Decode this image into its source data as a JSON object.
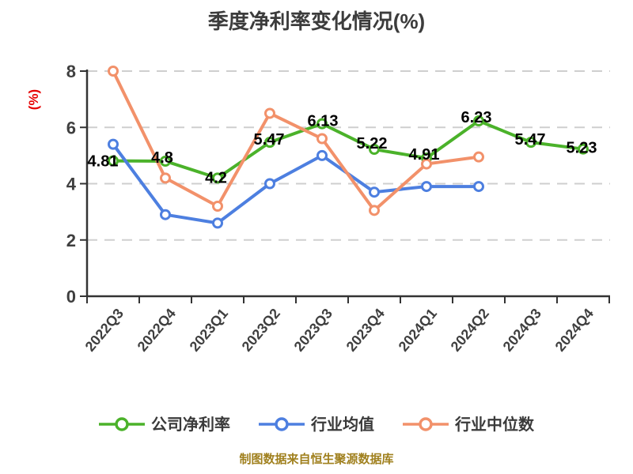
{
  "title": "季度净利率变化情况(%)",
  "footer": "制图数据来自恒生聚源数据库",
  "y_axis": {
    "unit_label": "(%)",
    "min": 0,
    "max": 8,
    "ticks": [
      0,
      2,
      4,
      6,
      8
    ]
  },
  "colors": {
    "company": "#4bb22a",
    "industry_avg": "#4d7fe0",
    "industry_median": "#f2916a",
    "grid": "#cfcfcf",
    "axis": "#333333",
    "data_label": "#000000",
    "footer_text": "#a0801e",
    "unit_label": "#e60000"
  },
  "chart_data": {
    "type": "line",
    "title": "季度净利率变化情况(%)",
    "ylabel": "(%)",
    "ylim": [
      0,
      8
    ],
    "yticks": [
      0,
      2,
      4,
      6,
      8
    ],
    "grid": true,
    "legend_position": "bottom",
    "categories": [
      "2022Q3",
      "2022Q4",
      "2023Q1",
      "2023Q2",
      "2023Q3",
      "2023Q4",
      "2024Q1",
      "2024Q2",
      "2024Q3",
      "2024Q4"
    ],
    "series": [
      {
        "name": "公司净利率",
        "key": "company-net-margin",
        "color": "#4bb22a",
        "values": [
          4.81,
          4.8,
          4.2,
          5.47,
          6.13,
          5.22,
          4.91,
          6.23,
          5.47,
          5.23
        ],
        "point_labels": [
          "4.81",
          "4.8",
          "4.2",
          "5.47",
          "6.13",
          "5.22",
          "4.91",
          "6.23",
          "5.47",
          "5.23"
        ]
      },
      {
        "name": "行业均值",
        "key": "industry-average",
        "color": "#4d7fe0",
        "values": [
          5.4,
          2.9,
          2.6,
          4.0,
          5.0,
          3.7,
          3.9,
          3.9,
          null,
          null
        ],
        "point_labels": null
      },
      {
        "name": "行业中位数",
        "key": "industry-median",
        "color": "#f2916a",
        "values": [
          8.0,
          4.2,
          3.2,
          6.5,
          5.6,
          3.05,
          4.7,
          4.95,
          null,
          null
        ],
        "point_labels": null
      }
    ]
  }
}
